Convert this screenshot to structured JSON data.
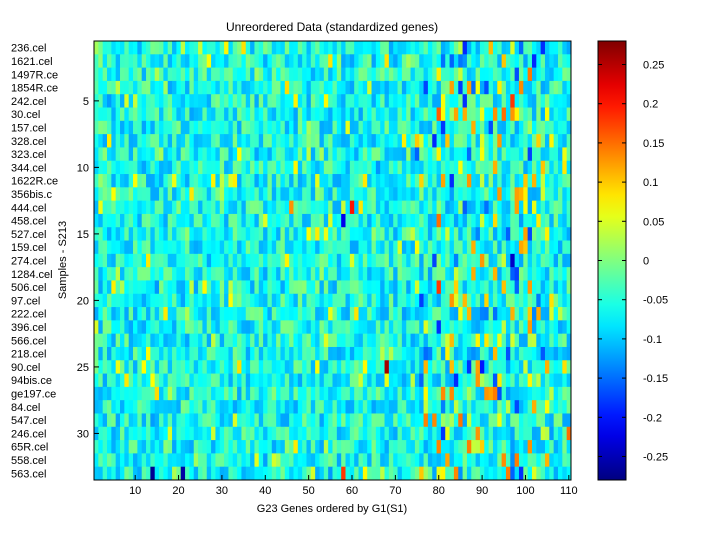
{
  "chart_data": {
    "type": "heatmap",
    "title": "Unreordered Data (standardized genes)",
    "xlabel": "G23 Genes ordered by G1(S1)",
    "ylabel": "Samples - S213",
    "n_rows": 33,
    "n_cols": 110,
    "xlim": [
      0.5,
      110.5
    ],
    "ylim": [
      0.5,
      33.5
    ],
    "x_ticks": [
      10,
      20,
      30,
      40,
      50,
      60,
      70,
      80,
      90,
      100,
      110
    ],
    "y_ticks": [
      5,
      10,
      15,
      20,
      25,
      30
    ],
    "row_labels": [
      "236.cel",
      "1621.cel",
      "1497R.ce",
      "1854R.ce",
      "242.cel",
      "30.cel",
      "157.cel",
      "328.cel",
      "323.cel",
      "344.cel",
      "1622R.ce",
      "356bis.c",
      "444.cel",
      "458.cel",
      "527.cel",
      "159.cel",
      "274.cel",
      "1284.cel",
      "506.cel",
      "97.cel",
      "222.cel",
      "396.cel",
      "566.cel",
      "218.cel",
      "90.cel",
      "94bis.ce",
      "ge197.ce",
      "84.cel",
      "547.cel",
      "246.cel",
      "65R.cel",
      "558.cel",
      "563.cel"
    ],
    "colorbar": {
      "colormap": "jet",
      "clim": [
        -0.28,
        0.28
      ],
      "ticks": [
        -0.25,
        -0.2,
        -0.15,
        -0.1,
        -0.05,
        0,
        0.05,
        0.1,
        0.15,
        0.2,
        0.25
      ],
      "tick_labels": [
        "-0.25",
        "-0.2",
        "-0.15",
        "-0.1",
        "-0.05",
        "0",
        "0.05",
        "0.1",
        "0.15",
        "0.2",
        "0.25"
      ]
    },
    "notable_cells": [
      {
        "row": 1,
        "col": 1,
        "value": 0.02
      },
      {
        "row": 6,
        "col": 80,
        "value": 0.16
      },
      {
        "row": 6,
        "col": 84,
        "value": 0.12
      },
      {
        "row": 5,
        "col": 97,
        "value": 0.18
      },
      {
        "row": 13,
        "col": 60,
        "value": 0.2
      },
      {
        "row": 13,
        "col": 46,
        "value": 0.13
      },
      {
        "row": 14,
        "col": 58,
        "value": -0.22
      },
      {
        "row": 14,
        "col": 80,
        "value": 0.15
      },
      {
        "row": 17,
        "col": 97,
        "value": -0.24
      },
      {
        "row": 19,
        "col": 80,
        "value": 0.18
      },
      {
        "row": 25,
        "col": 68,
        "value": 0.26
      },
      {
        "row": 25,
        "col": 90,
        "value": -0.2
      },
      {
        "row": 33,
        "col": 14,
        "value": -0.27
      },
      {
        "row": 33,
        "col": 21,
        "value": -0.26
      },
      {
        "row": 33,
        "col": 58,
        "value": 0.18
      },
      {
        "row": 33,
        "col": 76,
        "value": 0.1
      },
      {
        "row": 30,
        "col": 110,
        "value": 0.15
      }
    ],
    "value_distribution": {
      "background_range": [
        -0.12,
        0.0
      ],
      "hot_columns_range": [
        75,
        105
      ]
    }
  }
}
